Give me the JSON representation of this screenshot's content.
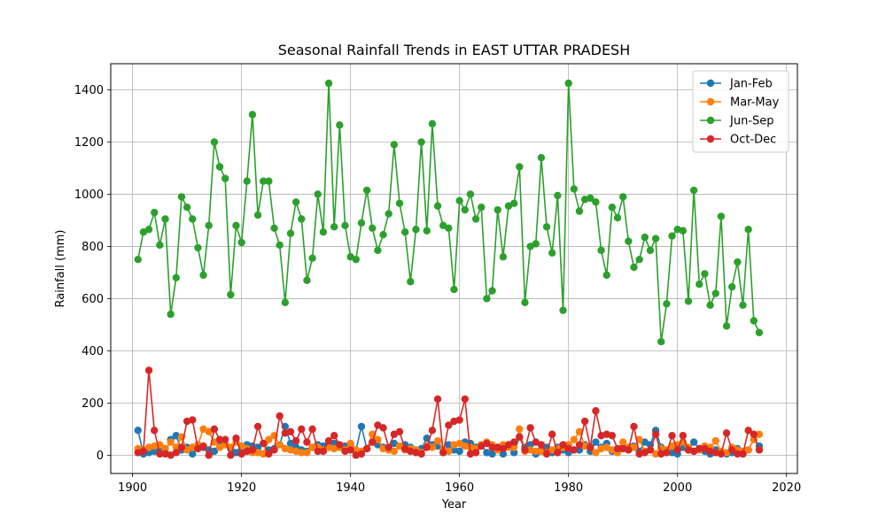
{
  "chart_data": {
    "type": "line",
    "title": "Seasonal Rainfall Trends in EAST UTTAR PRADESH",
    "xlabel": "Year",
    "ylabel": "Rainfall (mm)",
    "xlim": [
      1896,
      2022
    ],
    "ylim": [
      -70,
      1500
    ],
    "xticks": [
      1900,
      1920,
      1940,
      1960,
      1980,
      2000,
      2020
    ],
    "yticks": [
      0,
      200,
      400,
      600,
      800,
      1000,
      1200,
      1400
    ],
    "grid": true,
    "legend_position": "top-right",
    "markers": true,
    "x": [
      1901,
      1902,
      1903,
      1904,
      1905,
      1906,
      1907,
      1908,
      1909,
      1910,
      1911,
      1912,
      1913,
      1914,
      1915,
      1916,
      1917,
      1918,
      1919,
      1920,
      1921,
      1922,
      1923,
      1924,
      1925,
      1926,
      1927,
      1928,
      1929,
      1930,
      1931,
      1932,
      1933,
      1934,
      1935,
      1936,
      1937,
      1938,
      1939,
      1940,
      1941,
      1942,
      1943,
      1944,
      1945,
      1946,
      1947,
      1948,
      1949,
      1950,
      1951,
      1952,
      1953,
      1954,
      1955,
      1956,
      1957,
      1958,
      1959,
      1960,
      1961,
      1962,
      1963,
      1964,
      1965,
      1966,
      1967,
      1968,
      1969,
      1970,
      1971,
      1972,
      1973,
      1974,
      1975,
      1976,
      1977,
      1978,
      1979,
      1980,
      1981,
      1982,
      1983,
      1984,
      1985,
      1986,
      1987,
      1988,
      1989,
      1990,
      1991,
      1992,
      1993,
      1994,
      1995,
      1996,
      1997,
      1998,
      1999,
      2000,
      2001,
      2002,
      2003,
      2004,
      2005,
      2006,
      2007,
      2008,
      2009,
      2010,
      2011,
      2012,
      2013,
      2014,
      2015
    ],
    "series": [
      {
        "name": "Jan-Feb",
        "color": "#1f77b4",
        "values": [
          95,
          5,
          10,
          15,
          20,
          10,
          60,
          75,
          20,
          30,
          5,
          40,
          30,
          20,
          15,
          50,
          40,
          25,
          10,
          20,
          40,
          35,
          30,
          5,
          20,
          25,
          40,
          110,
          45,
          30,
          20,
          15,
          30,
          40,
          35,
          50,
          45,
          30,
          35,
          40,
          20,
          110,
          25,
          50,
          40,
          30,
          20,
          45,
          35,
          40,
          30,
          20,
          25,
          65,
          40,
          35,
          10,
          40,
          20,
          15,
          50,
          45,
          30,
          40,
          10,
          5,
          30,
          5,
          40,
          10,
          70,
          30,
          40,
          5,
          20,
          30,
          10,
          30,
          20,
          10,
          20,
          20,
          40,
          15,
          50,
          30,
          45,
          15,
          20,
          30,
          20,
          35,
          15,
          50,
          40,
          95,
          30,
          20,
          10,
          5,
          30,
          20,
          50,
          25,
          15,
          5,
          20,
          10,
          5,
          10,
          25,
          5,
          20,
          60,
          35
        ]
      },
      {
        "name": "Mar-May",
        "color": "#ff7f0e",
        "values": [
          25,
          20,
          30,
          35,
          40,
          25,
          50,
          30,
          70,
          20,
          30,
          40,
          100,
          90,
          50,
          30,
          40,
          30,
          50,
          35,
          25,
          10,
          10,
          5,
          60,
          75,
          40,
          25,
          20,
          15,
          10,
          10,
          30,
          30,
          20,
          30,
          25,
          30,
          20,
          45,
          20,
          15,
          25,
          80,
          60,
          25,
          20,
          15,
          35,
          20,
          25,
          20,
          10,
          35,
          30,
          55,
          20,
          15,
          40,
          45,
          35,
          30,
          25,
          40,
          50,
          40,
          20,
          40,
          30,
          30,
          100,
          15,
          20,
          15,
          15,
          10,
          20,
          25,
          30,
          40,
          60,
          90,
          35,
          30,
          10,
          25,
          30,
          20,
          10,
          50,
          30,
          30,
          60,
          15,
          20,
          5,
          25,
          20,
          35,
          40,
          50,
          30,
          15,
          20,
          35,
          30,
          55,
          15,
          10,
          30,
          20,
          15,
          20,
          60,
          80
        ]
      },
      {
        "name": "Jun-Sep",
        "color": "#2ca02c",
        "values": [
          750,
          855,
          865,
          930,
          805,
          905,
          540,
          680,
          990,
          950,
          905,
          795,
          690,
          880,
          1200,
          1105,
          1060,
          615,
          880,
          815,
          1050,
          1305,
          920,
          1050,
          1050,
          870,
          805,
          585,
          850,
          970,
          905,
          670,
          755,
          1000,
          855,
          1425,
          875,
          1265,
          880,
          760,
          750,
          890,
          1015,
          870,
          785,
          845,
          925,
          1190,
          965,
          855,
          665,
          865,
          1200,
          860,
          1270,
          955,
          880,
          870,
          635,
          975,
          940,
          1000,
          905,
          950,
          600,
          630,
          940,
          760,
          955,
          965,
          1105,
          585,
          800,
          810,
          1140,
          875,
          775,
          995,
          555,
          1425,
          1020,
          935,
          980,
          985,
          970,
          785,
          690,
          950,
          910,
          990,
          820,
          720,
          750,
          835,
          785,
          830,
          435,
          580,
          840,
          865,
          860,
          590,
          1015,
          655,
          695,
          575,
          620,
          915,
          495,
          645,
          740,
          575,
          865,
          515,
          470
        ]
      },
      {
        "name": "Oct-Dec",
        "color": "#d62728",
        "values": [
          10,
          15,
          325,
          95,
          5,
          5,
          0,
          10,
          30,
          130,
          135,
          25,
          35,
          0,
          100,
          60,
          60,
          0,
          65,
          5,
          15,
          20,
          110,
          45,
          5,
          20,
          150,
          85,
          90,
          55,
          100,
          50,
          100,
          15,
          15,
          55,
          75,
          40,
          15,
          20,
          0,
          5,
          25,
          50,
          115,
          105,
          30,
          80,
          90,
          25,
          15,
          10,
          5,
          30,
          95,
          215,
          10,
          115,
          130,
          135,
          215,
          5,
          10,
          35,
          45,
          30,
          30,
          25,
          40,
          50,
          70,
          20,
          105,
          50,
          40,
          5,
          80,
          10,
          40,
          25,
          20,
          40,
          130,
          30,
          170,
          75,
          80,
          75,
          25,
          25,
          20,
          110,
          5,
          10,
          20,
          80,
          5,
          10,
          75,
          20,
          75,
          20,
          15,
          25,
          25,
          15,
          10,
          5,
          85,
          20,
          5,
          5,
          95,
          80,
          20
        ]
      }
    ]
  }
}
